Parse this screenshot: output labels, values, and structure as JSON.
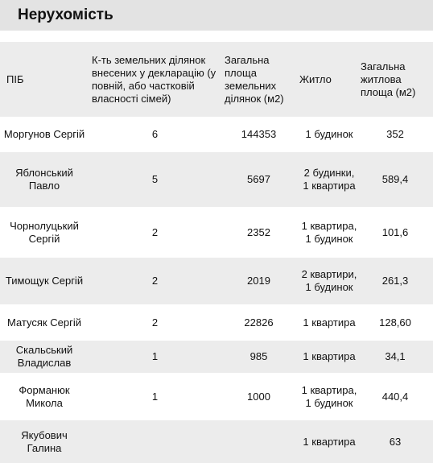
{
  "title": "Нерухомість",
  "table": {
    "headers": [
      "ПІБ",
      "К-ть земельних ділянок внесених у декларацію (у повній, або частковій власності сімей)",
      "Загальна площа земельних ділянок (м2)",
      "Житло",
      "Загальна житлова площа (м2)"
    ],
    "rows": [
      {
        "name": "Моргунов Сергій",
        "plots": "6",
        "land_area": "144353",
        "housing": "1 будинок",
        "living_area": "352"
      },
      {
        "name": "Яблонський Павло",
        "plots": "5",
        "land_area": "5697",
        "housing": "2 будинки, 1 квартира",
        "living_area": "589,4"
      },
      {
        "name": "Чорнолуцький Сергій",
        "plots": "2",
        "land_area": "2352",
        "housing": "1 квартира, 1 будинок",
        "living_area": "101,6"
      },
      {
        "name": "Тимощук Сергій",
        "plots": "2",
        "land_area": "2019",
        "housing": "2 квартири, 1 будинок",
        "living_area": "261,3"
      },
      {
        "name": "Матусяк Сергій",
        "plots": "2",
        "land_area": "22826",
        "housing": "1 квартира",
        "living_area": "128,60"
      },
      {
        "name": "Скальський Владислав",
        "plots": "1",
        "land_area": "985",
        "housing": "1 квартира",
        "living_area": "34,1"
      },
      {
        "name": "Форманюк Микола",
        "plots": "1",
        "land_area": "1000",
        "housing": "1 квартира, 1 будинок",
        "living_area": "440,4"
      },
      {
        "name": "Якубович Галина",
        "plots": "",
        "land_area": "",
        "housing": "1 квартира",
        "living_area": "63"
      }
    ]
  }
}
